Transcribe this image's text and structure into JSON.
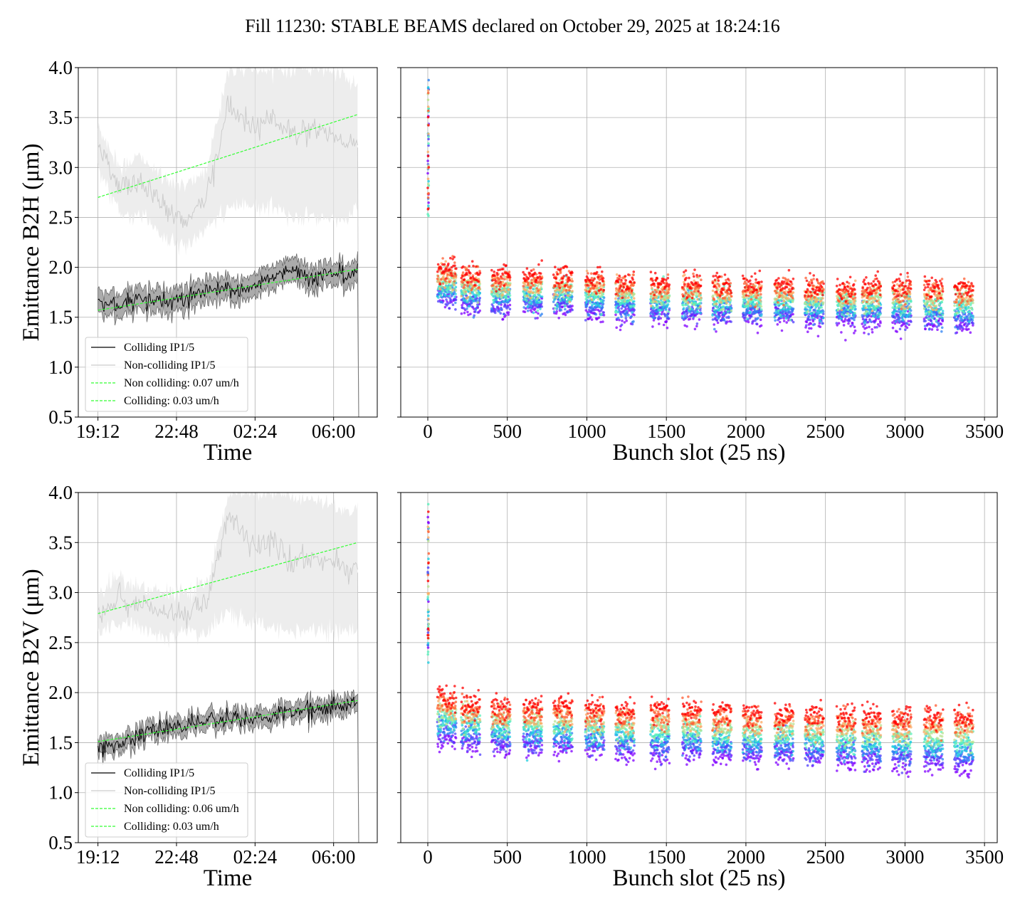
{
  "title": "Fill 11230: STABLE BEAMS declared on October 29, 2025 at 18:24:16",
  "colors": {
    "colliding": "#000000",
    "colliding_band": "#555555",
    "noncolliding": "#cccccc",
    "noncolliding_band": "#e6e6e6",
    "fit": "#33ff33",
    "grid": "#b0b0b0",
    "scatter_colormap": "rainbow"
  },
  "chart_data": [
    {
      "id": "b2h_time",
      "type": "line",
      "xlabel": "Time",
      "ylabel": "Emittance B2H (μm)",
      "ylim": [
        0.5,
        4.0
      ],
      "xlim_hours": [
        -0.9,
        12.8
      ],
      "x_ticks": [
        "19:12",
        "22:48",
        "02:24",
        "06:00"
      ],
      "y_ticks": [
        "0.5",
        "1.0",
        "1.5",
        "2.0",
        "2.5",
        "3.0",
        "3.5",
        "4.0"
      ],
      "grid": true,
      "legend_position": "lower-left",
      "legend": [
        "Colliding IP1/5",
        "Non-colliding IP1/5",
        "Non colliding: 0.07 um/h",
        "Colliding: 0.03 um/h"
      ],
      "series": [
        {
          "name": "Colliding IP1/5",
          "x": [
            0,
            1,
            2,
            3,
            4,
            5,
            6,
            7,
            8,
            9,
            10,
            11,
            11.5,
            11.9
          ],
          "y": [
            1.63,
            1.6,
            1.7,
            1.65,
            1.68,
            1.75,
            1.78,
            1.8,
            1.92,
            1.95,
            1.9,
            1.95,
            1.9,
            1.97
          ],
          "band": 0.1
        },
        {
          "name": "Non-colliding IP1/5",
          "x": [
            0,
            1,
            2,
            3,
            4,
            5,
            6,
            7,
            8,
            9,
            10,
            11,
            11.5,
            11.9
          ],
          "y": [
            3.25,
            2.8,
            2.85,
            2.6,
            2.45,
            2.75,
            3.6,
            3.4,
            3.5,
            3.3,
            3.4,
            3.3,
            3.2,
            3.25
          ],
          "band_low": [
            3.0,
            2.55,
            2.5,
            2.3,
            2.2,
            2.4,
            2.6,
            2.6,
            2.6,
            2.5,
            2.5,
            2.5,
            2.5,
            2.6
          ],
          "band_high": [
            3.4,
            3.0,
            3.1,
            2.9,
            2.8,
            3.0,
            4.0,
            4.0,
            4.0,
            4.0,
            4.0,
            3.95,
            3.85,
            3.85
          ]
        },
        {
          "name": "Non colliding: 0.07 um/h",
          "x": [
            0,
            11.9
          ],
          "y": [
            2.7,
            3.53
          ]
        },
        {
          "name": "Colliding: 0.03 um/h",
          "x": [
            0,
            11.9
          ],
          "y": [
            1.57,
            1.98
          ]
        }
      ]
    },
    {
      "id": "b2h_bunch",
      "type": "scatter",
      "xlabel": "Bunch slot (25 ns)",
      "ylim": [
        0.5,
        4.0
      ],
      "xlim": [
        -170,
        3580
      ],
      "x_ticks": [
        0,
        500,
        1000,
        1500,
        2000,
        2500,
        3000,
        3500
      ],
      "grid": true,
      "colormap": "rainbow (purple = early, red = late)",
      "trains_start": [
        60,
        210,
        400,
        600,
        790,
        990,
        1180,
        1400,
        1600,
        1790,
        1980,
        2180,
        2370,
        2570,
        2730,
        2920,
        3120,
        3310
      ],
      "train_width": 120,
      "level_red": [
        1.98,
        1.93,
        1.9,
        1.9,
        1.9,
        1.88,
        1.85,
        1.84,
        1.84,
        1.83,
        1.82,
        1.82,
        1.81,
        1.8,
        1.8,
        1.8,
        1.8,
        1.8
      ],
      "level_purple": [
        1.68,
        1.62,
        1.6,
        1.6,
        1.58,
        1.55,
        1.53,
        1.52,
        1.52,
        1.5,
        1.5,
        1.5,
        1.48,
        1.47,
        1.47,
        1.46,
        1.45,
        1.42
      ],
      "pilot": {
        "x": 0,
        "y_range": [
          2.5,
          3.9
        ]
      }
    },
    {
      "id": "b2v_time",
      "type": "line",
      "xlabel": "Time",
      "ylabel": "Emittance B2V (μm)",
      "ylim": [
        0.5,
        4.0
      ],
      "xlim_hours": [
        -0.9,
        12.8
      ],
      "x_ticks": [
        "19:12",
        "22:48",
        "02:24",
        "06:00"
      ],
      "y_ticks": [
        "0.5",
        "1.0",
        "1.5",
        "2.0",
        "2.5",
        "3.0",
        "3.5",
        "4.0"
      ],
      "grid": true,
      "legend_position": "lower-left",
      "legend": [
        "Colliding IP1/5",
        "Non-colliding IP1/5",
        "Non colliding: 0.06 um/h",
        "Colliding: 0.03 um/h"
      ],
      "series": [
        {
          "name": "Colliding IP1/5",
          "x": [
            0,
            1,
            2,
            3,
            4,
            5,
            6,
            7,
            8,
            9,
            10,
            11,
            11.5,
            11.9
          ],
          "y": [
            1.45,
            1.48,
            1.58,
            1.63,
            1.68,
            1.72,
            1.75,
            1.74,
            1.78,
            1.82,
            1.84,
            1.85,
            1.88,
            1.9
          ],
          "band": 0.07
        },
        {
          "name": "Non-colliding IP1/5",
          "x": [
            0,
            1,
            2,
            3,
            4,
            5,
            6,
            7,
            8,
            9,
            10,
            11,
            11.5,
            11.9
          ],
          "y": [
            2.8,
            2.95,
            2.85,
            2.8,
            2.8,
            2.9,
            3.8,
            3.45,
            3.5,
            3.3,
            3.35,
            3.25,
            3.2,
            3.3
          ],
          "band_low": [
            2.6,
            2.7,
            2.65,
            2.55,
            2.6,
            2.6,
            2.8,
            2.7,
            2.65,
            2.6,
            2.65,
            2.6,
            2.6,
            2.65
          ],
          "band_high": [
            3.0,
            3.15,
            3.05,
            3.0,
            3.0,
            3.1,
            4.0,
            4.0,
            4.0,
            3.95,
            3.9,
            3.85,
            3.8,
            3.85
          ]
        },
        {
          "name": "Non colliding: 0.06 um/h",
          "x": [
            0,
            11.9
          ],
          "y": [
            2.79,
            3.5
          ]
        },
        {
          "name": "Colliding: 0.03 um/h",
          "x": [
            0,
            11.9
          ],
          "y": [
            1.51,
            1.92
          ]
        }
      ]
    },
    {
      "id": "b2v_bunch",
      "type": "scatter",
      "xlabel": "Bunch slot (25 ns)",
      "ylim": [
        0.5,
        4.0
      ],
      "xlim": [
        -170,
        3580
      ],
      "x_ticks": [
        0,
        500,
        1000,
        1500,
        2000,
        2500,
        3000,
        3500
      ],
      "grid": true,
      "colormap": "rainbow (purple = early, red = late)",
      "trains_start": [
        60,
        210,
        400,
        600,
        790,
        990,
        1180,
        1400,
        1600,
        1790,
        1980,
        2180,
        2370,
        2570,
        2730,
        2920,
        3120,
        3310
      ],
      "train_width": 120,
      "level_red": [
        1.95,
        1.88,
        1.86,
        1.86,
        1.87,
        1.84,
        1.82,
        1.82,
        1.82,
        1.8,
        1.78,
        1.78,
        1.78,
        1.76,
        1.76,
        1.76,
        1.76,
        1.76
      ],
      "level_purple": [
        1.55,
        1.5,
        1.47,
        1.46,
        1.45,
        1.44,
        1.42,
        1.4,
        1.4,
        1.38,
        1.37,
        1.36,
        1.35,
        1.33,
        1.32,
        1.31,
        1.3,
        1.28
      ],
      "pilot": {
        "x": 0,
        "y_range": [
          2.3,
          3.9
        ]
      }
    }
  ]
}
